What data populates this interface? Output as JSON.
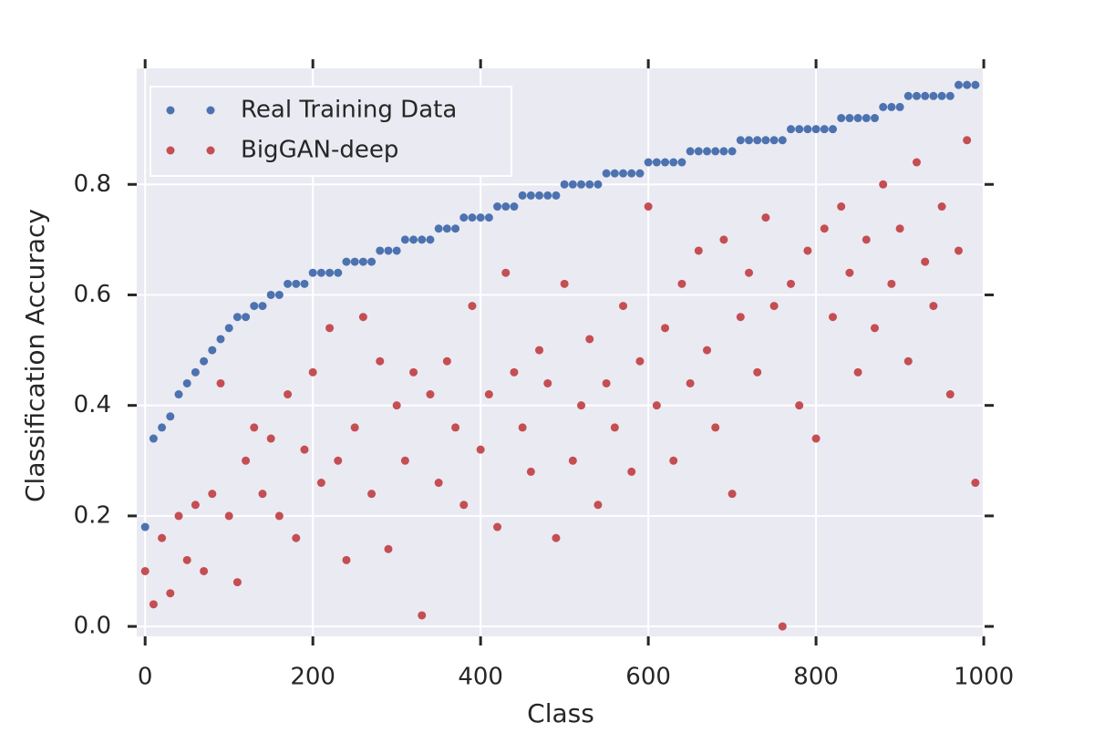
{
  "chart_data": {
    "type": "scatter",
    "xlabel": "Class",
    "ylabel": "Classification Accuracy",
    "x": [
      0,
      10,
      20,
      30,
      40,
      50,
      60,
      70,
      80,
      90,
      100,
      110,
      120,
      130,
      140,
      150,
      160,
      170,
      180,
      190,
      200,
      210,
      220,
      230,
      240,
      250,
      260,
      270,
      280,
      290,
      300,
      310,
      320,
      330,
      340,
      350,
      360,
      370,
      380,
      390,
      400,
      410,
      420,
      430,
      440,
      450,
      460,
      470,
      480,
      490,
      500,
      510,
      520,
      530,
      540,
      550,
      560,
      570,
      580,
      590,
      600,
      610,
      620,
      630,
      640,
      650,
      660,
      670,
      680,
      690,
      700,
      710,
      720,
      730,
      740,
      750,
      760,
      770,
      780,
      790,
      800,
      810,
      820,
      830,
      840,
      850,
      860,
      870,
      880,
      890,
      900,
      910,
      920,
      930,
      940,
      950,
      960,
      970,
      980,
      990
    ],
    "series": [
      {
        "name": "Real Training Data",
        "color": "#4c72b0",
        "values": [
          0.18,
          0.34,
          0.36,
          0.38,
          0.42,
          0.44,
          0.46,
          0.48,
          0.5,
          0.52,
          0.54,
          0.56,
          0.56,
          0.58,
          0.58,
          0.6,
          0.6,
          0.62,
          0.62,
          0.62,
          0.64,
          0.64,
          0.64,
          0.64,
          0.66,
          0.66,
          0.66,
          0.66,
          0.68,
          0.68,
          0.68,
          0.7,
          0.7,
          0.7,
          0.7,
          0.72,
          0.72,
          0.72,
          0.74,
          0.74,
          0.74,
          0.74,
          0.76,
          0.76,
          0.76,
          0.78,
          0.78,
          0.78,
          0.78,
          0.78,
          0.8,
          0.8,
          0.8,
          0.8,
          0.8,
          0.82,
          0.82,
          0.82,
          0.82,
          0.82,
          0.84,
          0.84,
          0.84,
          0.84,
          0.84,
          0.86,
          0.86,
          0.86,
          0.86,
          0.86,
          0.86,
          0.88,
          0.88,
          0.88,
          0.88,
          0.88,
          0.88,
          0.9,
          0.9,
          0.9,
          0.9,
          0.9,
          0.9,
          0.92,
          0.92,
          0.92,
          0.92,
          0.92,
          0.94,
          0.94,
          0.94,
          0.96,
          0.96,
          0.96,
          0.96,
          0.96,
          0.96,
          0.98,
          0.98,
          0.98
        ]
      },
      {
        "name": "BigGAN-deep",
        "color": "#c44e52",
        "values": [
          0.1,
          0.04,
          0.16,
          0.06,
          0.2,
          0.12,
          0.22,
          0.1,
          0.24,
          0.44,
          0.2,
          0.08,
          0.3,
          0.36,
          0.24,
          0.34,
          0.2,
          0.42,
          0.16,
          0.32,
          0.46,
          0.26,
          0.54,
          0.3,
          0.12,
          0.36,
          0.56,
          0.24,
          0.48,
          0.14,
          0.4,
          0.3,
          0.46,
          0.02,
          0.42,
          0.26,
          0.48,
          0.36,
          0.22,
          0.58,
          0.32,
          0.42,
          0.18,
          0.64,
          0.46,
          0.36,
          0.28,
          0.5,
          0.44,
          0.16,
          0.62,
          0.3,
          0.4,
          0.52,
          0.22,
          0.44,
          0.36,
          0.58,
          0.28,
          0.48,
          0.76,
          0.4,
          0.54,
          0.3,
          0.62,
          0.44,
          0.68,
          0.5,
          0.36,
          0.7,
          0.24,
          0.56,
          0.64,
          0.46,
          0.74,
          0.58,
          0.0,
          0.62,
          0.4,
          0.68,
          0.34,
          0.72,
          0.56,
          0.76,
          0.64,
          0.46,
          0.7,
          0.54,
          0.8,
          0.62,
          0.72,
          0.48,
          0.84,
          0.66,
          0.58,
          0.76,
          0.42,
          0.68,
          0.88,
          0.26
        ]
      }
    ],
    "xlim": [
      -10,
      1001
    ],
    "ylim": [
      -0.018,
      1.01
    ],
    "xticks": [
      0,
      200,
      400,
      600,
      800,
      1000
    ],
    "yticks": [
      {
        "value": 0,
        "label": "0.0"
      },
      0.2,
      0.4,
      0.6,
      0.8
    ],
    "grid": true,
    "legend": "upper left"
  }
}
